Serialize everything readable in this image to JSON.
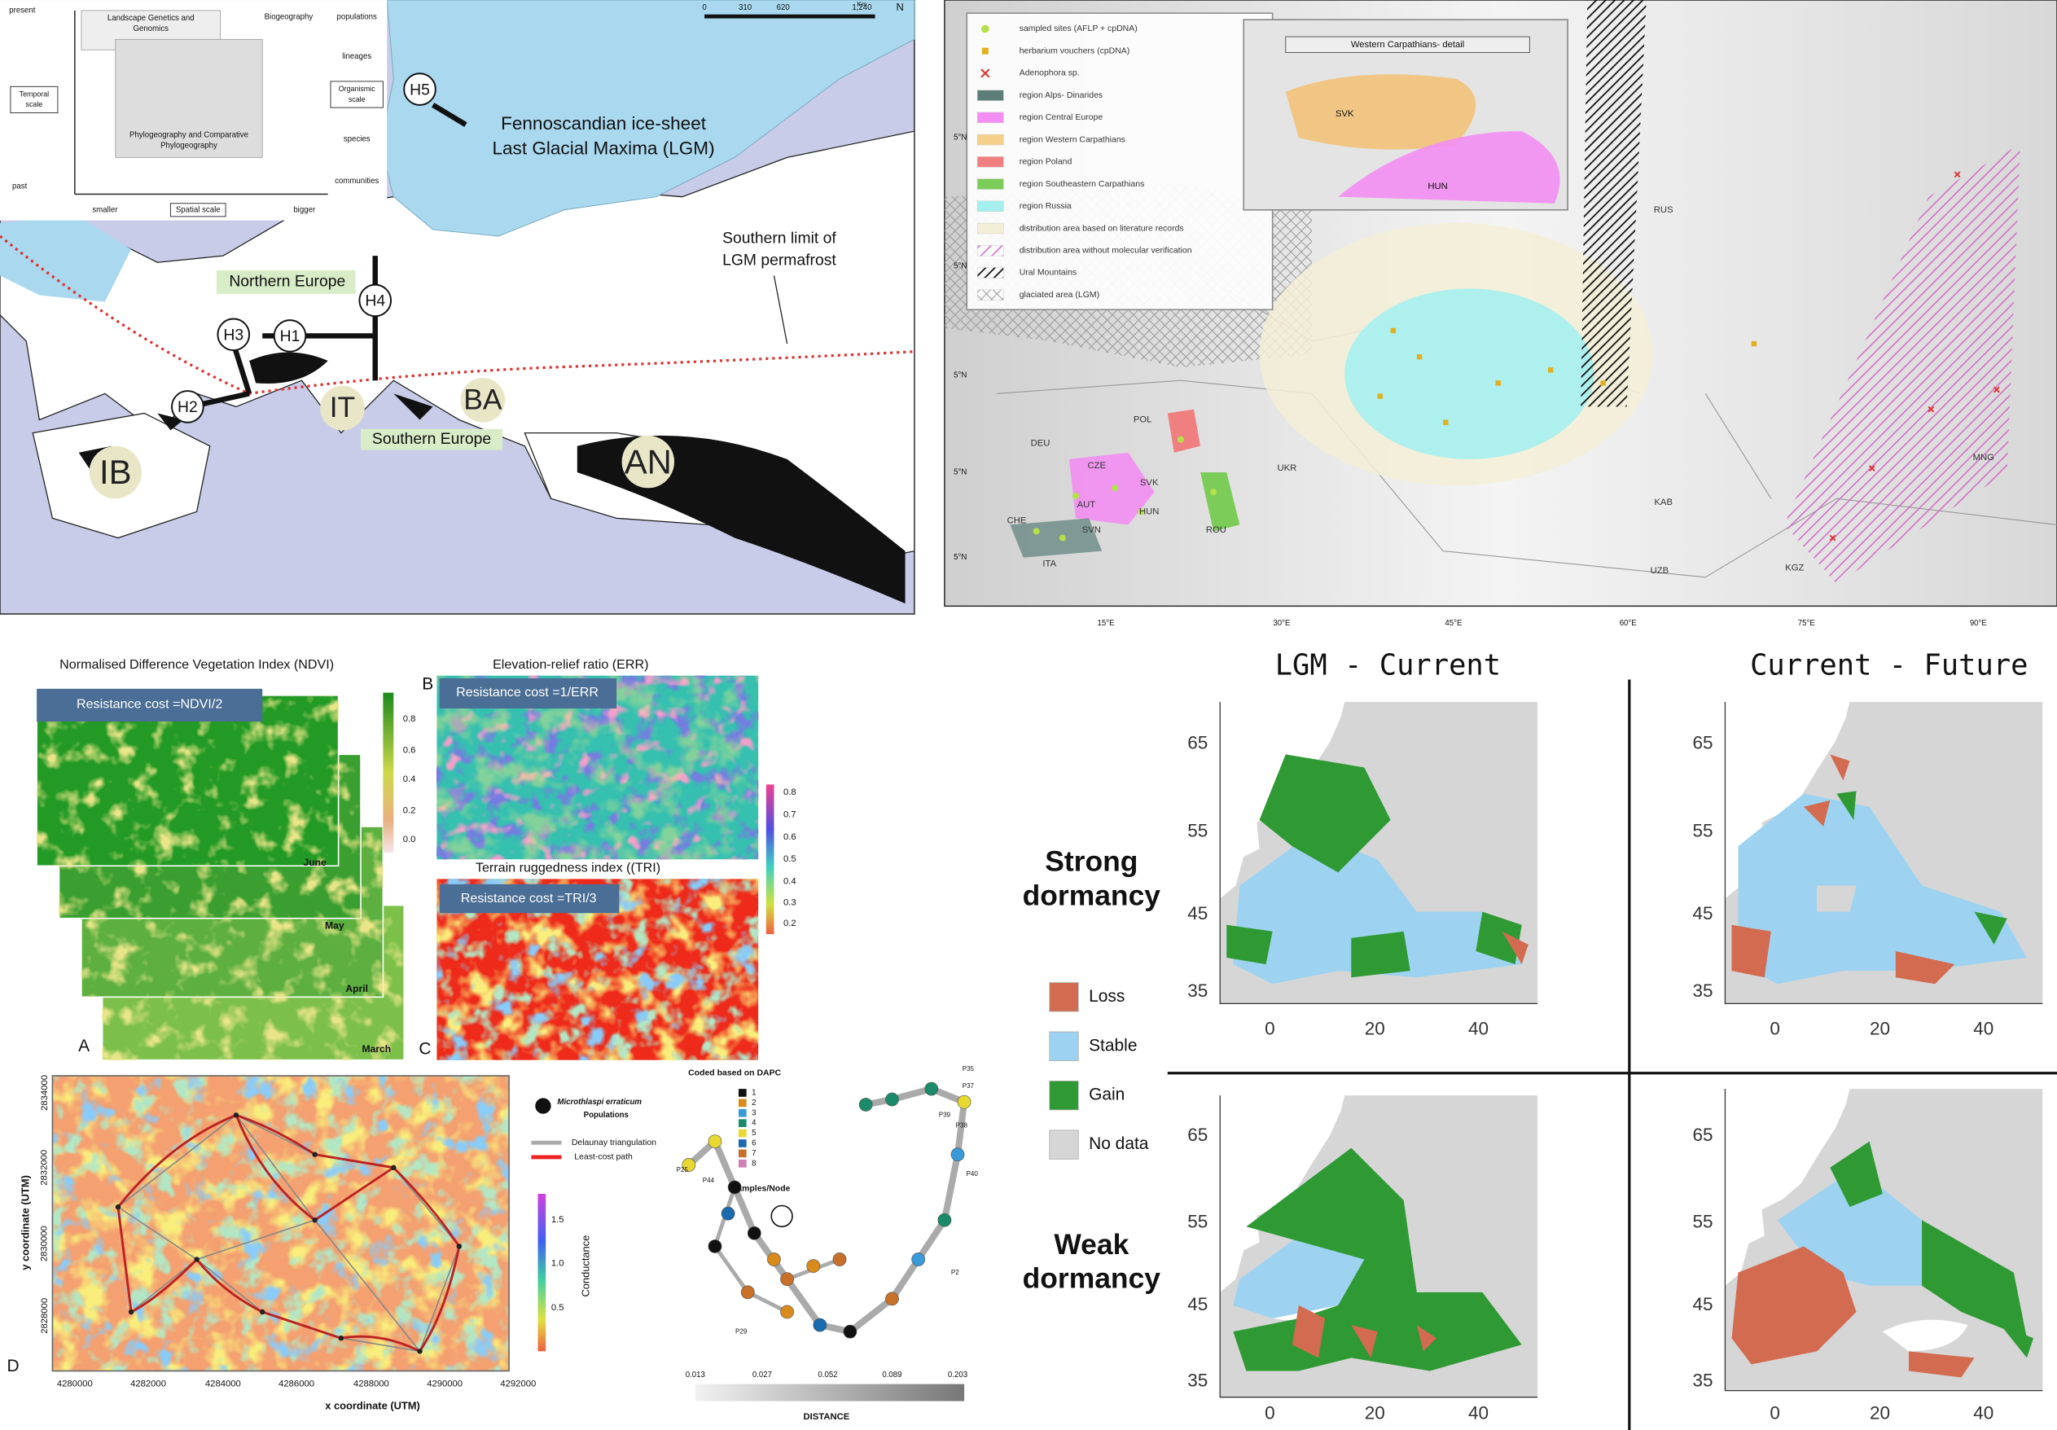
{
  "top_left_map": {
    "scale_bar": {
      "ticks": [
        "0",
        "310",
        "620",
        "1,240"
      ],
      "unit": "Km"
    },
    "north": "N",
    "inset": {
      "time_top": "present",
      "time_bottom": "past",
      "time_axis": [
        "Temporal",
        "scale"
      ],
      "fields": [
        [
          "Landscape Genetics and",
          "Genomics"
        ],
        [
          "Biogeography"
        ],
        [
          "Phylogeography and Comparative",
          "Phylogeography"
        ]
      ],
      "organismic_levels": [
        "populations",
        "lineages",
        "species",
        "communities"
      ],
      "organismic_axis": [
        "Organismic",
        "scale"
      ],
      "space_left": "smaller",
      "space_axis": "Spatial scale",
      "space_right": "bigger"
    },
    "hypotheses": [
      "H1",
      "H2",
      "H3",
      "H4",
      "H5"
    ],
    "ice_sheet_label": [
      "Fennoscandian ice-sheet",
      "Last Glacial Maxima (LGM)"
    ],
    "permafrost_label": [
      "Southern limit of",
      "LGM permafrost"
    ],
    "regions": [
      "Northern Europe",
      "Southern Europe"
    ],
    "refugia": [
      "IB",
      "IT",
      "BA",
      "AN"
    ]
  },
  "top_right_map": {
    "legend": [
      "sampled sites (AFLP + cpDNA)",
      "herbarium vouchers (cpDNA)",
      "Adenophora sp.",
      "region Alps- Dinarides",
      "region Central Europe",
      "region Western Carpathians",
      "region Poland",
      "region Southeastern Carpathians",
      "region Russia",
      "distribution area based on literature records",
      "distribution area without molecular verification",
      "Ural Mountains",
      "glaciated area (LGM)"
    ],
    "inset_title": "Western Carpathians- detail",
    "inset_labels": [
      "SVK",
      "HUN"
    ],
    "countries": [
      "RUS",
      "POL",
      "DEU",
      "CZE",
      "SVK",
      "AUT",
      "HUN",
      "CHE",
      "SVN",
      "ITA",
      "ROU",
      "UKR",
      "KAB",
      "UZB",
      "KGZ",
      "MNG"
    ],
    "longitudes": [
      "15°E",
      "30°E",
      "45°E",
      "60°E",
      "75°E",
      "90°E"
    ],
    "latitudes": [
      "5°N",
      "5°N",
      "5°N",
      "5°N",
      "5°N"
    ]
  },
  "resistance": {
    "ndvi": {
      "title": "Normalised Difference Vegetation Index (NDVI)",
      "cost": "Resistance cost =NDVI/2",
      "scale": [
        "0.8",
        "0.6",
        "0.4",
        "0.2",
        "0.0"
      ],
      "months": [
        "June",
        "May",
        "April",
        "March"
      ],
      "panel": "A"
    },
    "err": {
      "title": "Elevation-relief ratio (ERR)",
      "cost": "Resistance cost =1/ERR",
      "scale": [
        "0.8",
        "0.7",
        "0.6",
        "0.5",
        "0.4",
        "0.3",
        "0.2"
      ],
      "panel": "B"
    },
    "tri": {
      "title": "Terrain ruggedness index ((TRI)",
      "cost": "Resistance cost =TRI/3",
      "panel": "C"
    }
  },
  "connectivity": {
    "panel": "D",
    "y_title": "y coordinate (UTM)",
    "y_ticks": [
      "2834000",
      "2832000",
      "2830000",
      "2828000"
    ],
    "x_title": "x coordinate (UTM)",
    "x_ticks": [
      "4280000",
      "4282000",
      "4284000",
      "4286000",
      "4288000",
      "4290000",
      "4292000"
    ],
    "colorbar_title": "Conductance",
    "colorbar_ticks": [
      "1.5",
      "1.0",
      "0.5"
    ],
    "legend": {
      "populations": [
        "Microthlaspi erraticum",
        "Populations"
      ],
      "delaunay": "Delaunay triangulation",
      "least_cost": "Least-cost path"
    }
  },
  "network": {
    "legend_title": "Coded based on DAPC",
    "clusters": [
      "1",
      "2",
      "3",
      "4",
      "5",
      "6",
      "7",
      "8"
    ],
    "node_size_label": "Samples/Node",
    "node_labels": [
      "P35",
      "P37",
      "P38",
      "P39",
      "P40",
      "P2",
      "P44",
      "P25",
      "P29"
    ],
    "distance_ticks": [
      "0.013",
      "0.027",
      "0.052",
      "0.089",
      "0.203"
    ],
    "distance_title": "DISTANCE"
  },
  "dormancy": {
    "columns": [
      "LGM - Current",
      "Current - Future"
    ],
    "rows": [
      [
        "Strong",
        "dormancy"
      ],
      [
        "Weak",
        "dormancy"
      ]
    ],
    "legend": [
      "Loss",
      "Stable",
      "Gain",
      "No data"
    ],
    "y_ticks": [
      "65",
      "55",
      "45",
      "35"
    ],
    "x_ticks": [
      "0",
      "20",
      "40"
    ]
  }
}
